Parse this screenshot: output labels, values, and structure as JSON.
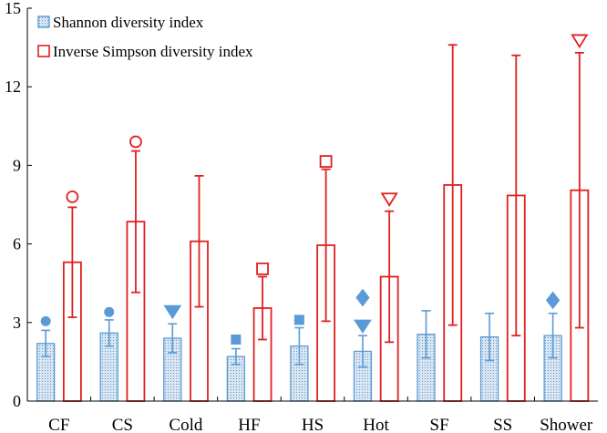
{
  "chart_data": {
    "type": "bar",
    "title": "",
    "xlabel": "",
    "ylabel": "",
    "ylim": [
      0,
      15
    ],
    "yticks": [
      "0",
      "3",
      "6",
      "9",
      "12",
      "15"
    ],
    "categories": [
      "CF",
      "CS",
      "Cold",
      "HF",
      "HS",
      "Hot",
      "SF",
      "SS",
      "Shower"
    ],
    "legend_position": "top-left",
    "series": [
      {
        "name": "Shannon diversity index",
        "color": "#5b9bd5",
        "values": [
          2.2,
          2.6,
          2.4,
          1.7,
          2.1,
          1.9,
          2.55,
          2.45,
          2.5
        ],
        "errors": [
          0.5,
          0.5,
          0.55,
          0.3,
          0.7,
          0.6,
          0.9,
          0.9,
          0.85
        ]
      },
      {
        "name": "Inverse Simpson diversity index",
        "color": "#e02020",
        "values": [
          5.3,
          6.85,
          6.1,
          3.55,
          5.95,
          4.75,
          8.25,
          7.85,
          8.05
        ],
        "errors": [
          2.1,
          2.7,
          2.5,
          1.2,
          2.9,
          2.5,
          5.35,
          5.35,
          5.25
        ]
      }
    ],
    "annotations": [
      {
        "category": "CF",
        "series": "Shannon diversity index",
        "marker": "circle-filled",
        "y": 3.05
      },
      {
        "category": "CS",
        "series": "Shannon diversity index",
        "marker": "circle-filled",
        "y": 3.4
      },
      {
        "category": "Cold",
        "series": "Shannon diversity index",
        "marker": "triangle-down-filled",
        "y": 3.4
      },
      {
        "category": "HF",
        "series": "Shannon diversity index",
        "marker": "square-filled",
        "y": 2.35
      },
      {
        "category": "HS",
        "series": "Shannon diversity index",
        "marker": "square-filled",
        "y": 3.1
      },
      {
        "category": "Hot",
        "series": "Shannon diversity index",
        "marker": "diamond-filled",
        "y": 3.95
      },
      {
        "category": "Hot",
        "series": "Shannon diversity index",
        "marker": "triangle-down-filled",
        "y": 2.85
      },
      {
        "category": "Shower",
        "series": "Shannon diversity index",
        "marker": "diamond-filled",
        "y": 3.85
      },
      {
        "category": "CF",
        "series": "Inverse Simpson diversity index",
        "marker": "circle-open",
        "y": 7.8
      },
      {
        "category": "CS",
        "series": "Inverse Simpson diversity index",
        "marker": "circle-open",
        "y": 9.9
      },
      {
        "category": "HF",
        "series": "Inverse Simpson diversity index",
        "marker": "square-open",
        "y": 5.05
      },
      {
        "category": "HS",
        "series": "Inverse Simpson diversity index",
        "marker": "square-open",
        "y": 9.15
      },
      {
        "category": "Hot",
        "series": "Inverse Simpson diversity index",
        "marker": "triangle-down-open",
        "y": 7.7
      },
      {
        "category": "Shower",
        "series": "Inverse Simpson diversity index",
        "marker": "triangle-down-open",
        "y": 13.75
      }
    ]
  }
}
